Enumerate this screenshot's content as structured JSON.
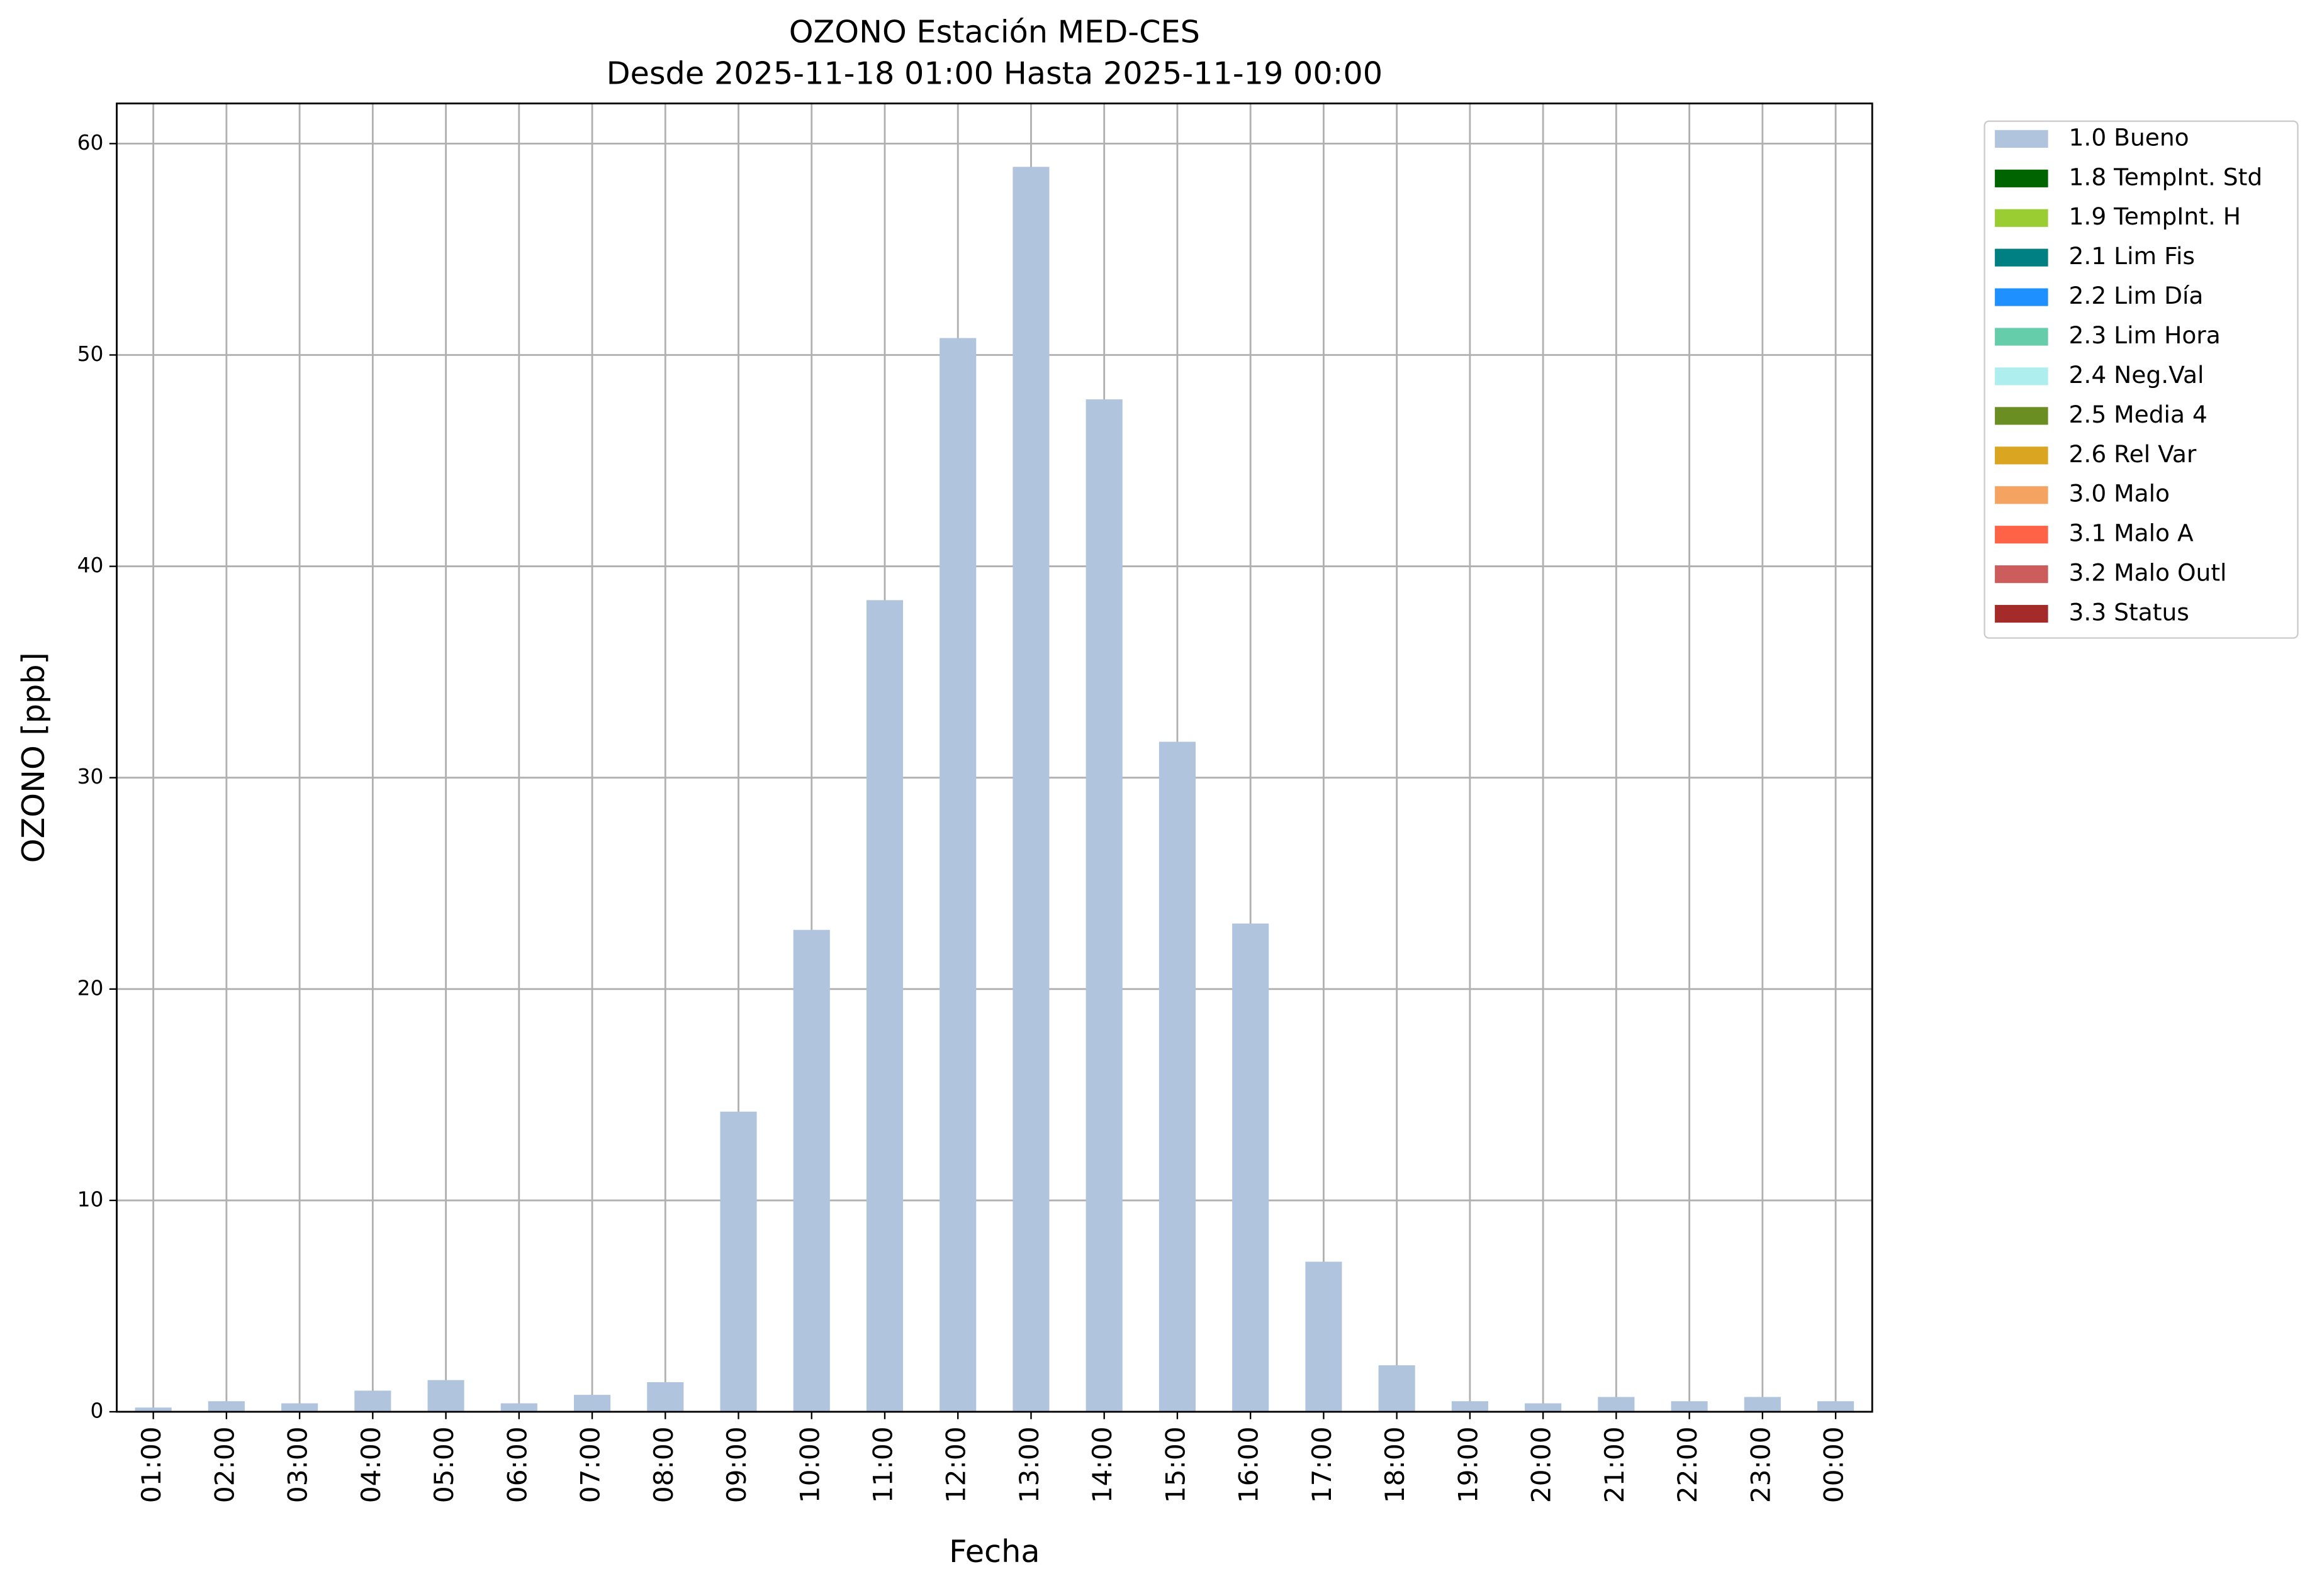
{
  "chart_data": {
    "type": "bar",
    "title": "OZONO Estación MED-CES",
    "subtitle": "Desde 2025-11-18 01:00 Hasta 2025-11-19 00:00",
    "x_label": "Fecha",
    "y_label": "OZONO [ppb]",
    "categories": [
      "01:00",
      "02:00",
      "03:00",
      "04:00",
      "05:00",
      "06:00",
      "07:00",
      "08:00",
      "09:00",
      "10:00",
      "11:00",
      "12:00",
      "13:00",
      "14:00",
      "15:00",
      "16:00",
      "17:00",
      "18:00",
      "19:00",
      "20:00",
      "21:00",
      "22:00",
      "23:00",
      "00:00"
    ],
    "series": [
      {
        "name": "1.0 Bueno",
        "color": "#b0c4de",
        "values": [
          0.2,
          0.5,
          0.4,
          1.0,
          1.5,
          0.4,
          0.8,
          1.4,
          14.2,
          22.8,
          38.4,
          50.8,
          58.9,
          47.9,
          31.7,
          23.1,
          7.1,
          2.2,
          0.5,
          0.4,
          0.7,
          0.5,
          0.7,
          0.5
        ]
      },
      {
        "name": "1.8 TempInt. Std",
        "color": "#006400",
        "values": [
          null,
          null,
          null,
          null,
          null,
          null,
          null,
          null,
          null,
          null,
          null,
          null,
          null,
          null,
          null,
          null,
          null,
          null,
          null,
          null,
          null,
          null,
          null,
          null
        ]
      },
      {
        "name": "1.9 TempInt. H",
        "color": "#9acd32",
        "values": [
          null,
          null,
          null,
          null,
          null,
          null,
          null,
          null,
          null,
          null,
          null,
          null,
          null,
          null,
          null,
          null,
          null,
          null,
          null,
          null,
          null,
          null,
          null,
          null
        ]
      },
      {
        "name": "2.1 Lim Fis",
        "color": "#008080",
        "values": [
          null,
          null,
          null,
          null,
          null,
          null,
          null,
          null,
          null,
          null,
          null,
          null,
          null,
          null,
          null,
          null,
          null,
          null,
          null,
          null,
          null,
          null,
          null,
          null
        ]
      },
      {
        "name": "2.2 Lim Día",
        "color": "#1e90ff",
        "values": [
          null,
          null,
          null,
          null,
          null,
          null,
          null,
          null,
          null,
          null,
          null,
          null,
          null,
          null,
          null,
          null,
          null,
          null,
          null,
          null,
          null,
          null,
          null,
          null
        ]
      },
      {
        "name": "2.3 Lim Hora",
        "color": "#66cdaa",
        "values": [
          null,
          null,
          null,
          null,
          null,
          null,
          null,
          null,
          null,
          null,
          null,
          null,
          null,
          null,
          null,
          null,
          null,
          null,
          null,
          null,
          null,
          null,
          null,
          null
        ]
      },
      {
        "name": "2.4 Neg.Val",
        "color": "#afeeee",
        "values": [
          null,
          null,
          null,
          null,
          null,
          null,
          null,
          null,
          null,
          null,
          null,
          null,
          null,
          null,
          null,
          null,
          null,
          null,
          null,
          null,
          null,
          null,
          null,
          null
        ]
      },
      {
        "name": "2.5 Media 4",
        "color": "#6b8e23",
        "values": [
          null,
          null,
          null,
          null,
          null,
          null,
          null,
          null,
          null,
          null,
          null,
          null,
          null,
          null,
          null,
          null,
          null,
          null,
          null,
          null,
          null,
          null,
          null,
          null
        ]
      },
      {
        "name": "2.6 Rel Var",
        "color": "#daa520",
        "values": [
          null,
          null,
          null,
          null,
          null,
          null,
          null,
          null,
          null,
          null,
          null,
          null,
          null,
          null,
          null,
          null,
          null,
          null,
          null,
          null,
          null,
          null,
          null,
          null
        ]
      },
      {
        "name": "3.0 Malo",
        "color": "#f4a460",
        "values": [
          null,
          null,
          null,
          null,
          null,
          null,
          null,
          null,
          null,
          null,
          null,
          null,
          null,
          null,
          null,
          null,
          null,
          null,
          null,
          null,
          null,
          null,
          null,
          null
        ]
      },
      {
        "name": "3.1 Malo A",
        "color": "#ff6347",
        "values": [
          null,
          null,
          null,
          null,
          null,
          null,
          null,
          null,
          null,
          null,
          null,
          null,
          null,
          null,
          null,
          null,
          null,
          null,
          null,
          null,
          null,
          null,
          null,
          null
        ]
      },
      {
        "name": "3.2 Malo Outl",
        "color": "#cd5c5c",
        "values": [
          null,
          null,
          null,
          null,
          null,
          null,
          null,
          null,
          null,
          null,
          null,
          null,
          null,
          null,
          null,
          null,
          null,
          null,
          null,
          null,
          null,
          null,
          null,
          null
        ]
      },
      {
        "name": "3.3 Status",
        "color": "#a52a2a",
        "values": [
          null,
          null,
          null,
          null,
          null,
          null,
          null,
          null,
          null,
          null,
          null,
          null,
          null,
          null,
          null,
          null,
          null,
          null,
          null,
          null,
          null,
          null,
          null,
          null
        ]
      }
    ],
    "ylim": [
      0,
      61.9
    ],
    "yticks": [
      0,
      10,
      20,
      30,
      40,
      50,
      60
    ],
    "grid": true,
    "stacked": true,
    "legend": "outside-right"
  }
}
